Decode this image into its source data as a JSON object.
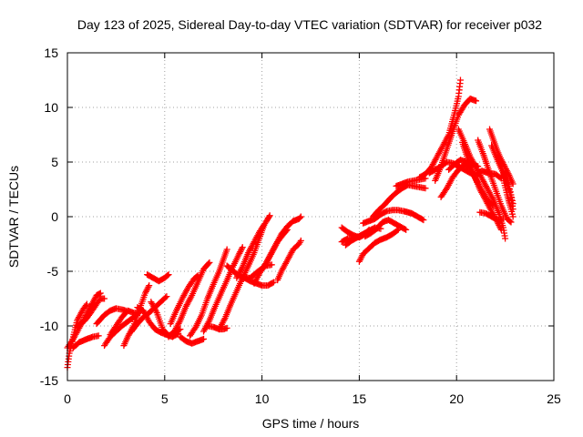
{
  "chart_data": {
    "type": "scatter",
    "title": "Day 123 of 2025, Sidereal Day-to-day VTEC variation (SDTVAR) for receiver p032",
    "xlabel": "GPS time / hours",
    "ylabel": "SDTVAR / TECUs",
    "xlim": [
      0,
      25
    ],
    "ylim": [
      -15,
      15
    ],
    "xticks": [
      0,
      5,
      10,
      15,
      20,
      25
    ],
    "yticks": [
      -15,
      -10,
      -5,
      0,
      5,
      10,
      15
    ],
    "grid": true,
    "marker": "+",
    "series_color": "#ff0000",
    "segments": [
      [
        [
          0.0,
          -13.8
        ],
        [
          0.1,
          -12.5
        ],
        [
          0.3,
          -11.0
        ],
        [
          0.5,
          -9.5
        ],
        [
          0.8,
          -8.5
        ],
        [
          1.0,
          -8.0
        ]
      ],
      [
        [
          0.0,
          -12.0
        ],
        [
          0.3,
          -11.2
        ],
        [
          0.6,
          -10.2
        ],
        [
          0.9,
          -9.2
        ],
        [
          1.2,
          -8.2
        ],
        [
          1.5,
          -7.2
        ],
        [
          1.7,
          -7.0
        ]
      ],
      [
        [
          0.3,
          -12.0
        ],
        [
          0.6,
          -11.5
        ],
        [
          1.0,
          -11.2
        ],
        [
          1.3,
          -11.0
        ],
        [
          1.6,
          -10.9
        ]
      ],
      [
        [
          0.5,
          -10.0
        ],
        [
          0.9,
          -9.5
        ],
        [
          1.2,
          -8.8
        ],
        [
          1.5,
          -8.0
        ],
        [
          1.7,
          -7.5
        ],
        [
          1.9,
          -7.5
        ]
      ],
      [
        [
          1.5,
          -9.8
        ],
        [
          1.9,
          -9.0
        ],
        [
          2.2,
          -8.6
        ],
        [
          2.5,
          -8.4
        ],
        [
          2.8,
          -8.5
        ],
        [
          3.0,
          -8.6
        ]
      ],
      [
        [
          1.9,
          -11.8
        ],
        [
          2.2,
          -11.0
        ],
        [
          2.5,
          -10.5
        ],
        [
          2.8,
          -10.0
        ],
        [
          3.1,
          -9.6
        ],
        [
          3.4,
          -9.2
        ],
        [
          3.6,
          -9.0
        ]
      ],
      [
        [
          2.2,
          -10.8
        ],
        [
          2.5,
          -10.0
        ],
        [
          2.8,
          -9.2
        ],
        [
          3.1,
          -8.6
        ],
        [
          3.4,
          -8.8
        ],
        [
          3.7,
          -8.8
        ]
      ],
      [
        [
          2.9,
          -11.8
        ],
        [
          3.1,
          -11.0
        ],
        [
          3.4,
          -10.0
        ],
        [
          3.7,
          -8.5
        ],
        [
          4.0,
          -7.0
        ],
        [
          4.2,
          -6.3
        ]
      ],
      [
        [
          3.3,
          -10.5
        ],
        [
          3.6,
          -9.8
        ],
        [
          3.9,
          -9.2
        ],
        [
          4.2,
          -8.8
        ],
        [
          4.5,
          -8.3
        ],
        [
          4.8,
          -7.8
        ],
        [
          5.1,
          -7.3
        ]
      ],
      [
        [
          3.6,
          -8.3
        ],
        [
          3.9,
          -8.6
        ],
        [
          4.2,
          -9.6
        ],
        [
          4.5,
          -10.3
        ],
        [
          4.8,
          -10.6
        ],
        [
          5.1,
          -10.8
        ],
        [
          5.4,
          -11.0
        ],
        [
          5.7,
          -10.7
        ]
      ],
      [
        [
          4.3,
          -7.8
        ],
        [
          4.6,
          -8.8
        ],
        [
          4.9,
          -10.3
        ],
        [
          5.2,
          -10.9
        ],
        [
          5.5,
          -10.6
        ],
        [
          5.8,
          -10.3
        ]
      ],
      [
        [
          4.1,
          -5.3
        ],
        [
          4.4,
          -5.6
        ],
        [
          4.7,
          -5.9
        ],
        [
          5.0,
          -5.6
        ],
        [
          5.2,
          -5.3
        ]
      ],
      [
        [
          5.3,
          -9.8
        ],
        [
          5.6,
          -8.6
        ],
        [
          5.9,
          -7.5
        ],
        [
          6.2,
          -6.5
        ],
        [
          6.5,
          -5.7
        ],
        [
          6.7,
          -5.4
        ]
      ],
      [
        [
          5.2,
          -11.0
        ],
        [
          5.5,
          -10.5
        ],
        [
          5.8,
          -9.5
        ],
        [
          6.1,
          -8.2
        ],
        [
          6.4,
          -7.2
        ],
        [
          6.7,
          -6.0
        ],
        [
          7.0,
          -4.8
        ],
        [
          7.3,
          -4.2
        ]
      ],
      [
        [
          5.8,
          -11.0
        ],
        [
          6.1,
          -11.4
        ],
        [
          6.4,
          -11.6
        ],
        [
          6.7,
          -11.4
        ],
        [
          7.0,
          -11.2
        ]
      ],
      [
        [
          6.3,
          -10.9
        ],
        [
          6.6,
          -10.1
        ],
        [
          6.9,
          -9.0
        ],
        [
          7.2,
          -7.5
        ],
        [
          7.5,
          -6.2
        ],
        [
          7.8,
          -5.0
        ],
        [
          8.0,
          -4.0
        ],
        [
          8.2,
          -3.0
        ]
      ],
      [
        [
          7.0,
          -10.5
        ],
        [
          7.3,
          -9.5
        ],
        [
          7.6,
          -8.2
        ],
        [
          7.9,
          -7.0
        ],
        [
          8.2,
          -5.8
        ],
        [
          8.5,
          -4.6
        ],
        [
          8.8,
          -3.5
        ],
        [
          9.0,
          -2.8
        ]
      ],
      [
        [
          7.2,
          -10.0
        ],
        [
          7.5,
          -10.1
        ],
        [
          7.8,
          -10.3
        ],
        [
          8.0,
          -10.3
        ],
        [
          8.2,
          -10.2
        ]
      ],
      [
        [
          7.8,
          -10.3
        ],
        [
          8.1,
          -9.3
        ],
        [
          8.4,
          -8.0
        ],
        [
          8.7,
          -6.8
        ],
        [
          9.0,
          -5.6
        ],
        [
          9.3,
          -4.5
        ],
        [
          9.6,
          -3.3
        ],
        [
          9.9,
          -1.8
        ],
        [
          10.1,
          -0.8
        ]
      ],
      [
        [
          8.2,
          -4.5
        ],
        [
          8.6,
          -5.1
        ],
        [
          9.0,
          -5.6
        ],
        [
          9.4,
          -5.6
        ],
        [
          9.8,
          -5.0
        ],
        [
          10.2,
          -4.5
        ],
        [
          10.5,
          -4.4
        ]
      ],
      [
        [
          8.7,
          -5.6
        ],
        [
          9.0,
          -4.6
        ],
        [
          9.3,
          -3.3
        ],
        [
          9.6,
          -2.3
        ],
        [
          9.9,
          -1.3
        ],
        [
          10.2,
          -0.5
        ],
        [
          10.4,
          0.1
        ]
      ],
      [
        [
          9.1,
          -5.6
        ],
        [
          9.4,
          -5.9
        ],
        [
          9.7,
          -6.1
        ],
        [
          10.0,
          -6.3
        ],
        [
          10.3,
          -6.3
        ],
        [
          10.6,
          -6.0
        ]
      ],
      [
        [
          9.6,
          -6.1
        ],
        [
          9.9,
          -5.1
        ],
        [
          10.2,
          -4.3
        ],
        [
          10.5,
          -3.3
        ],
        [
          10.8,
          -2.3
        ],
        [
          11.1,
          -1.6
        ],
        [
          11.3,
          -1.2
        ]
      ],
      [
        [
          10.1,
          -4.6
        ],
        [
          10.4,
          -3.6
        ],
        [
          10.7,
          -2.6
        ],
        [
          11.0,
          -1.6
        ],
        [
          11.3,
          -0.9
        ],
        [
          11.6,
          -0.4
        ],
        [
          11.9,
          -0.2
        ],
        [
          12.0,
          0.0
        ]
      ],
      [
        [
          10.8,
          -5.8
        ],
        [
          11.0,
          -5.0
        ],
        [
          11.3,
          -4.0
        ],
        [
          11.6,
          -3.0
        ],
        [
          11.9,
          -2.5
        ],
        [
          12.0,
          -2.2
        ]
      ],
      [
        [
          14.1,
          -2.3
        ],
        [
          14.4,
          -2.0
        ],
        [
          14.7,
          -1.9
        ],
        [
          15.0,
          -1.8
        ],
        [
          15.3,
          -1.5
        ]
      ],
      [
        [
          14.1,
          -1.0
        ],
        [
          14.4,
          -1.4
        ],
        [
          14.7,
          -1.7
        ],
        [
          15.0,
          -1.9
        ],
        [
          15.3,
          -1.6
        ],
        [
          15.5,
          -1.2
        ]
      ],
      [
        [
          14.3,
          -2.6
        ],
        [
          14.6,
          -2.2
        ],
        [
          14.9,
          -1.9
        ],
        [
          15.2,
          -1.6
        ],
        [
          15.5,
          -1.3
        ],
        [
          15.8,
          -1.0
        ],
        [
          16.1,
          -1.1
        ]
      ],
      [
        [
          15.0,
          -4.1
        ],
        [
          15.2,
          -3.4
        ],
        [
          15.5,
          -2.9
        ],
        [
          15.8,
          -2.4
        ],
        [
          16.1,
          -2.1
        ],
        [
          16.4,
          -1.9
        ],
        [
          16.7,
          -1.6
        ],
        [
          17.0,
          -1.2
        ]
      ],
      [
        [
          15.3,
          -1.8
        ],
        [
          15.6,
          -1.5
        ],
        [
          15.9,
          -1.1
        ],
        [
          16.2,
          -0.5
        ],
        [
          16.5,
          -0.3
        ],
        [
          16.8,
          -0.6
        ],
        [
          17.1,
          -0.9
        ],
        [
          17.4,
          -1.2
        ]
      ],
      [
        [
          15.2,
          -0.6
        ],
        [
          15.5,
          -0.4
        ],
        [
          15.8,
          -0.2
        ],
        [
          16.1,
          0.2
        ],
        [
          16.4,
          0.5
        ],
        [
          16.7,
          0.6
        ],
        [
          17.0,
          0.6
        ],
        [
          17.3,
          0.5
        ],
        [
          17.7,
          0.3
        ],
        [
          18.0,
          0.0
        ],
        [
          18.3,
          -0.3
        ]
      ],
      [
        [
          15.7,
          0.0
        ],
        [
          16.0,
          0.6
        ],
        [
          16.3,
          1.1
        ],
        [
          16.6,
          1.7
        ],
        [
          16.9,
          2.2
        ],
        [
          17.2,
          2.6
        ],
        [
          17.5,
          2.9
        ],
        [
          17.8,
          2.8
        ],
        [
          18.1,
          2.7
        ],
        [
          18.4,
          2.6
        ]
      ],
      [
        [
          16.9,
          2.8
        ],
        [
          17.2,
          3.0
        ],
        [
          17.5,
          3.2
        ],
        [
          17.8,
          3.3
        ],
        [
          18.1,
          3.4
        ],
        [
          18.4,
          3.5
        ]
      ],
      [
        [
          18.1,
          3.6
        ],
        [
          18.4,
          3.9
        ],
        [
          18.7,
          4.5
        ],
        [
          19.0,
          5.5
        ],
        [
          19.3,
          6.5
        ],
        [
          19.6,
          7.5
        ],
        [
          19.9,
          9.5
        ],
        [
          20.1,
          11.0
        ],
        [
          20.2,
          12.5
        ]
      ],
      [
        [
          18.9,
          3.3
        ],
        [
          19.2,
          4.6
        ],
        [
          19.5,
          6.2
        ],
        [
          19.8,
          7.8
        ],
        [
          20.1,
          9.3
        ],
        [
          20.4,
          10.2
        ],
        [
          20.7,
          10.8
        ],
        [
          21.0,
          10.6
        ]
      ],
      [
        [
          18.6,
          4.0
        ],
        [
          18.9,
          4.3
        ],
        [
          19.2,
          4.6
        ],
        [
          19.5,
          5.0
        ],
        [
          19.8,
          4.9
        ],
        [
          20.1,
          4.6
        ],
        [
          20.4,
          4.3
        ],
        [
          20.7,
          4.0
        ],
        [
          21.0,
          3.8
        ],
        [
          21.3,
          4.2
        ],
        [
          21.6,
          4.0
        ],
        [
          22.0,
          3.9
        ],
        [
          22.3,
          3.5
        ]
      ],
      [
        [
          19.2,
          1.8
        ],
        [
          19.5,
          2.6
        ],
        [
          19.8,
          3.6
        ],
        [
          20.1,
          4.3
        ],
        [
          20.4,
          4.8
        ],
        [
          20.7,
          4.4
        ],
        [
          21.0,
          3.4
        ],
        [
          21.3,
          2.4
        ],
        [
          21.6,
          1.5
        ],
        [
          21.9,
          1.0
        ]
      ],
      [
        [
          19.6,
          4.3
        ],
        [
          19.9,
          4.8
        ],
        [
          20.2,
          5.2
        ],
        [
          20.5,
          5.0
        ],
        [
          20.8,
          4.8
        ],
        [
          21.1,
          4.6
        ]
      ],
      [
        [
          20.1,
          8.0
        ],
        [
          20.4,
          6.8
        ],
        [
          20.7,
          5.5
        ],
        [
          21.0,
          4.5
        ],
        [
          21.3,
          3.5
        ],
        [
          21.6,
          2.5
        ],
        [
          21.9,
          1.5
        ],
        [
          22.2,
          0.2
        ],
        [
          22.4,
          -1.0
        ],
        [
          22.5,
          -2.0
        ]
      ],
      [
        [
          20.3,
          6.8
        ],
        [
          20.6,
          5.2
        ],
        [
          20.9,
          3.8
        ],
        [
          21.2,
          2.5
        ],
        [
          21.5,
          1.5
        ],
        [
          21.8,
          0.5
        ],
        [
          22.1,
          -0.5
        ],
        [
          22.3,
          -1.2
        ]
      ],
      [
        [
          21.1,
          7.0
        ],
        [
          21.4,
          5.6
        ],
        [
          21.7,
          4.0
        ],
        [
          22.0,
          2.5
        ],
        [
          22.3,
          1.0
        ],
        [
          22.6,
          -0.2
        ],
        [
          22.8,
          -0.5
        ]
      ],
      [
        [
          21.2,
          0.4
        ],
        [
          21.5,
          0.3
        ],
        [
          21.8,
          0.0
        ],
        [
          22.1,
          -0.3
        ],
        [
          22.4,
          -0.2
        ]
      ],
      [
        [
          21.7,
          8.0
        ],
        [
          21.9,
          7.0
        ],
        [
          22.1,
          6.0
        ],
        [
          22.3,
          5.2
        ],
        [
          22.5,
          4.5
        ],
        [
          22.7,
          3.8
        ],
        [
          22.9,
          3.0
        ]
      ],
      [
        [
          21.8,
          6.5
        ],
        [
          22.1,
          5.2
        ],
        [
          22.4,
          4.0
        ],
        [
          22.6,
          3.0
        ],
        [
          22.8,
          1.8
        ],
        [
          22.9,
          0.7
        ]
      ],
      [
        [
          22.1,
          5.5
        ],
        [
          22.3,
          4.5
        ],
        [
          22.5,
          3.6
        ],
        [
          22.7,
          2.8
        ],
        [
          22.8,
          2.0
        ],
        [
          22.9,
          1.2
        ]
      ],
      [
        [
          22.4,
          3.5
        ],
        [
          22.6,
          2.0
        ],
        [
          22.8,
          0.7
        ],
        [
          22.9,
          0.0
        ]
      ]
    ]
  }
}
